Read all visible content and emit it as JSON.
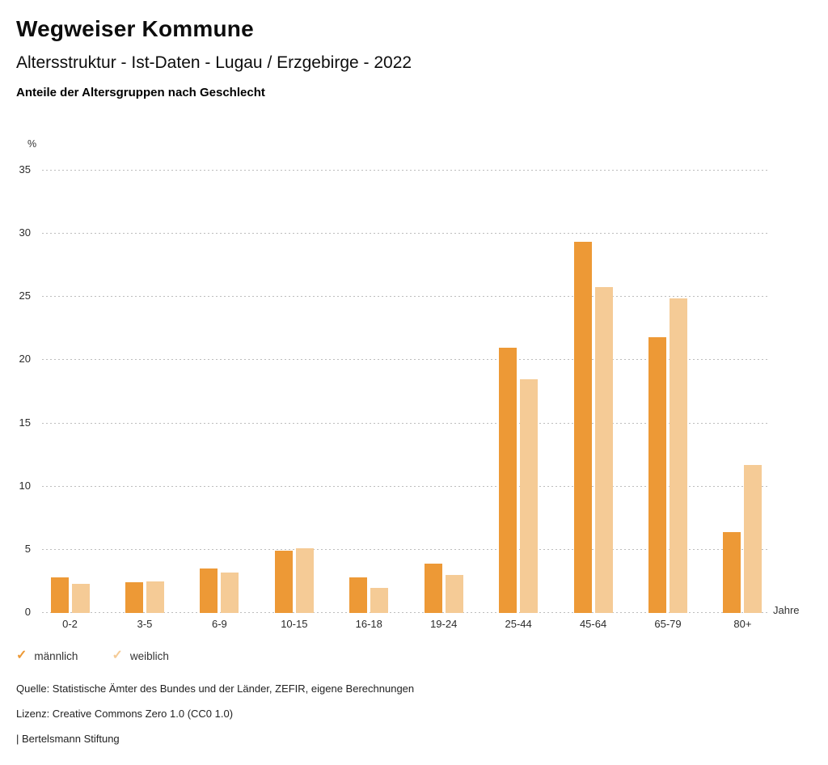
{
  "header": {
    "title": "Wegweiser Kommune",
    "subtitle": "Altersstruktur - Ist-Daten - Lugau / Erzgebirge - 2022",
    "chart_heading": "Anteile der Altersgruppen nach Geschlecht"
  },
  "chart_data": {
    "type": "bar",
    "title": "Anteile der Altersgruppen nach Geschlecht",
    "categories": [
      "0-2",
      "3-5",
      "6-9",
      "10-15",
      "16-18",
      "19-24",
      "25-44",
      "45-64",
      "65-79",
      "80+"
    ],
    "series": [
      {
        "name": "männlich",
        "color": "#ED9936",
        "values": [
          2.8,
          2.4,
          3.5,
          4.9,
          2.8,
          3.9,
          21.0,
          29.4,
          21.8,
          6.4
        ]
      },
      {
        "name": "weiblich",
        "color": "#F5CB96",
        "values": [
          2.3,
          2.5,
          3.2,
          5.1,
          2.0,
          3.0,
          18.5,
          25.8,
          24.9,
          11.7
        ]
      }
    ],
    "xlabel": "Jahre",
    "ylabel": "%",
    "ylim": [
      0,
      35
    ],
    "yticks": [
      0,
      5,
      10,
      15,
      20,
      25,
      30,
      35
    ],
    "grid": "horizontal-dotted",
    "legend_position": "bottom-left",
    "legend_marker": "check"
  },
  "footer": {
    "source": "Quelle: Statistische Ämter des Bundes und der Länder, ZEFIR, eigene Berechnungen",
    "license": "Lizenz: Creative Commons Zero 1.0 (CC0 1.0)",
    "attribution": "| Bertelsmann Stiftung"
  }
}
